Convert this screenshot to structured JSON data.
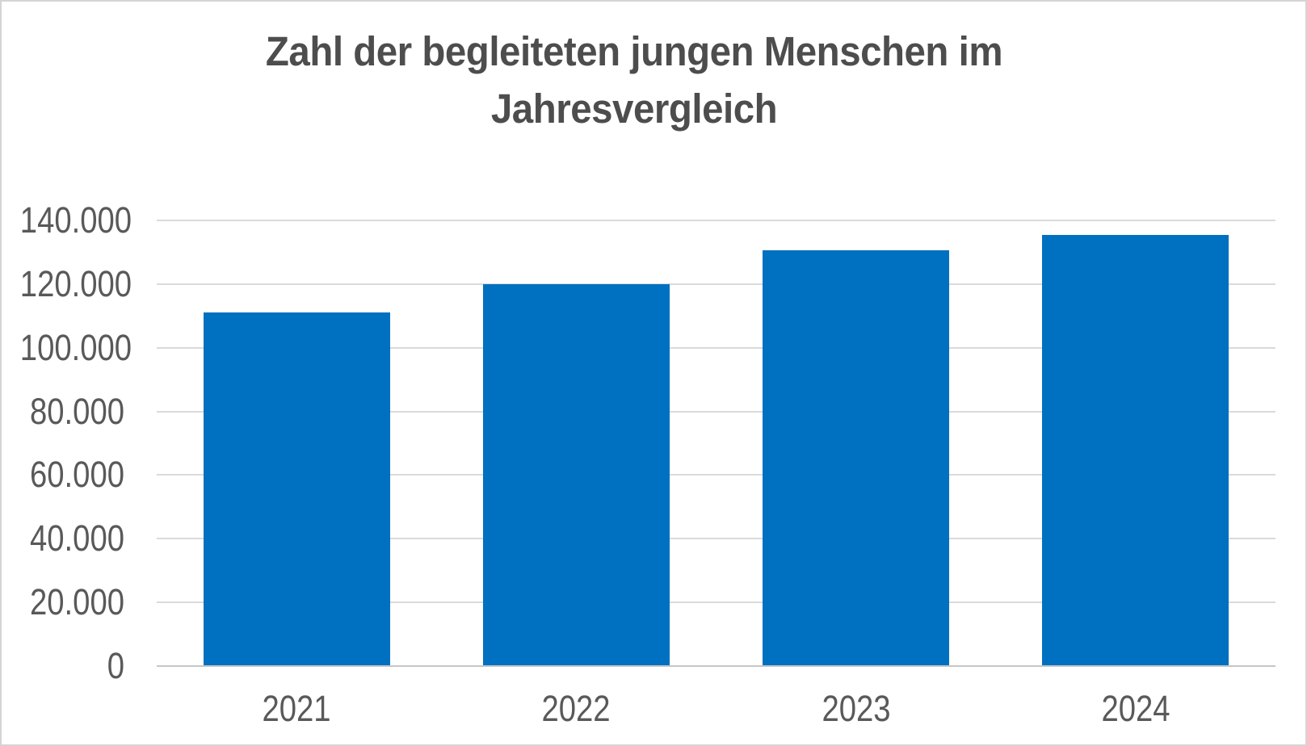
{
  "chart_data": {
    "type": "bar",
    "title": "Zahl der begleiteten jungen Menschen im Jahresvergleich",
    "title_display": "Zahl der begleiteten jungen Menschen im\nJahresvergleich",
    "categories": [
      "2021",
      "2022",
      "2023",
      "2024"
    ],
    "values": [
      111000,
      120000,
      130500,
      135500
    ],
    "ylim": [
      0,
      140000
    ],
    "ytick_step": 20000,
    "ytick_labels": [
      "0",
      "20.000",
      "40.000",
      "60.000",
      "80.000",
      "100.000",
      "120.000",
      "140.000"
    ],
    "xlabel": "",
    "ylabel": "",
    "grid": true,
    "legend": false,
    "bar_color": "#0070C0"
  },
  "colors": {
    "bar": "#0070C0",
    "gridline": "#DADADA",
    "axis_line": "#C6C6C6",
    "tick_label": "#595959",
    "title": "#4D4D4D",
    "background": "#FFFFFF",
    "canvas_border": "#D4D4D4"
  }
}
